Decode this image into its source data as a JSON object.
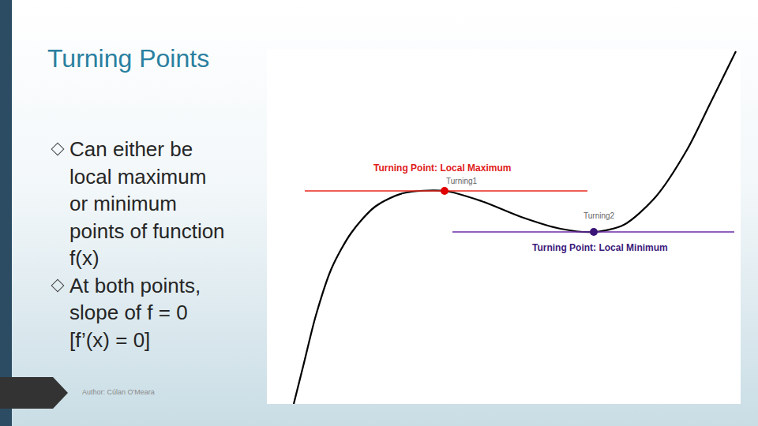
{
  "slide": {
    "title": "Turning Points",
    "bullets": [
      [
        "Can either be",
        "local maximum",
        "or minimum",
        "points of function",
        "f(x)"
      ],
      [
        "At both points,",
        "slope of f = 0",
        "[f’(x) = 0]"
      ]
    ],
    "author": "Author: Cúlan O'Meara"
  },
  "chart_data": {
    "type": "line",
    "xlim": [
      0,
      600
    ],
    "ylim": [
      0,
      450
    ],
    "grid": false,
    "tick_labels": false,
    "series": [
      {
        "color": "#000000",
        "line_style": "solid",
        "x": [
          34,
          47,
          62,
          82,
          107,
          137,
          172,
          225,
          272,
          322,
          372,
          414,
          452,
          492,
          532,
          562,
          594
        ],
        "values": [
          0,
          52,
          112,
          172,
          217,
          250,
          267,
          270,
          257,
          237,
          222,
          218,
          227,
          262,
          322,
          382,
          447
        ]
      },
      {
        "color": "#e8281e",
        "line_style": "solid",
        "x": [
          48,
          406
        ],
        "values": [
          270,
          270
        ]
      },
      {
        "color": "#6a2ca8",
        "line_style": "solid",
        "x": [
          235,
          592
        ],
        "values": [
          218,
          218
        ]
      },
      {
        "type": "scatter",
        "marker": "circle",
        "color": "#e00000",
        "x": [
          225
        ],
        "values": [
          270
        ]
      },
      {
        "type": "scatter",
        "marker": "circle",
        "color": "#3a1577",
        "x": [
          414
        ],
        "values": [
          218
        ]
      }
    ],
    "annotations": [
      {
        "text": "Turning Point: Local Maximum",
        "x": 222,
        "y": 299,
        "color": "#e0201a"
      },
      {
        "text": "Turning1",
        "x": 247,
        "y": 283,
        "color": "#666666"
      },
      {
        "text": "Turning2",
        "x": 421,
        "y": 239,
        "color": "#666666"
      },
      {
        "text": "Turning Point: Local Minimum",
        "x": 422,
        "y": 198,
        "color": "#3c1a7a"
      }
    ]
  }
}
